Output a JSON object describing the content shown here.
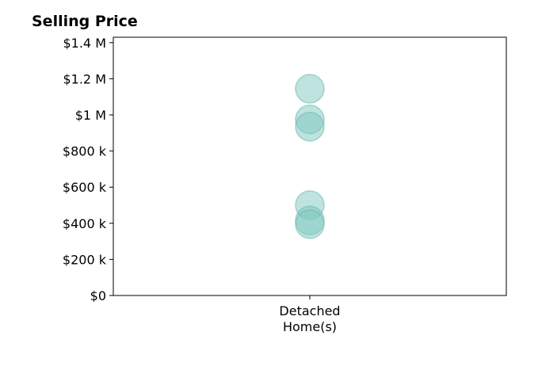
{
  "chart_data": {
    "type": "scatter",
    "title": "Selling Price",
    "categories": [
      "Detached\nHome(s)"
    ],
    "y_ticks": [
      {
        "value": 0,
        "label": "$0"
      },
      {
        "value": 200000,
        "label": "$200 k"
      },
      {
        "value": 400000,
        "label": "$400 k"
      },
      {
        "value": 600000,
        "label": "$600 k"
      },
      {
        "value": 800000,
        "label": "$800 k"
      },
      {
        "value": 1000000,
        "label": "$1 M"
      },
      {
        "value": 1200000,
        "label": "$1.2 M"
      },
      {
        "value": 1400000,
        "label": "$1.4 M"
      }
    ],
    "ylim": [
      0,
      1430000
    ],
    "series": [
      {
        "category": "Detached\nHome(s)",
        "values": [
          1145000,
          975000,
          935000,
          500000,
          415000,
          395000
        ]
      }
    ],
    "marker_color": "#7fc7bf",
    "marker_edge_color": "#62b3aa",
    "grid": false,
    "legend": "none"
  }
}
